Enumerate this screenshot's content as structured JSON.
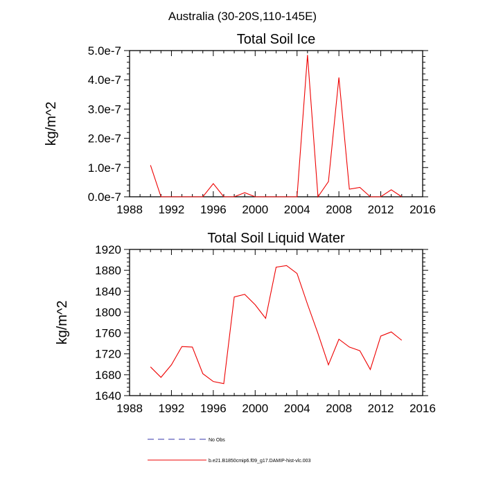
{
  "figure": {
    "suptitle": "Australia (30-20S,110-145E)"
  },
  "legend": {
    "placement": "bottom-center",
    "entries": [
      {
        "label": "No Obs",
        "color": "#3333aa",
        "style": "dashed"
      },
      {
        "label": "b.e21.B1850cmip6.f09_g17.DAMIP-hist-vlc.003",
        "color": "#ee0000",
        "style": "solid"
      }
    ]
  },
  "chart_data": [
    {
      "type": "line",
      "title": "Total Soil Ice",
      "ylabel": "kg/m^2",
      "xlabel": "",
      "xlim": [
        1988,
        2016
      ],
      "ylim": [
        0,
        5e-07
      ],
      "xticks": [
        1988,
        1992,
        1996,
        2000,
        2004,
        2008,
        2012,
        2016
      ],
      "xtick_labels": [
        "1988",
        "1992",
        "1996",
        "2000",
        "2004",
        "2008",
        "2012",
        "2016"
      ],
      "yticks": [
        0,
        1e-07,
        2e-07,
        3e-07,
        4e-07,
        5e-07
      ],
      "ytick_labels": [
        "0.0e-7",
        "1.0e-7",
        "2.0e-7",
        "3.0e-7",
        "4.0e-7",
        "5.0e-7"
      ],
      "grid": false,
      "series": [
        {
          "color": "#ee0000",
          "x": [
            1990,
            1991,
            1992,
            1993,
            1994,
            1995,
            1996,
            1997,
            1998,
            1999,
            2000,
            2001,
            2002,
            2003,
            2004,
            2005,
            2006,
            2007,
            2008,
            2009,
            2010,
            2011,
            2012,
            2013,
            2014
          ],
          "y": [
            1.08e-07,
            0,
            0,
            0,
            0,
            0,
            4.5e-08,
            0,
            0,
            1.4e-08,
            0,
            0,
            0,
            0,
            0,
            4.85e-07,
            0,
            5.2e-08,
            4.08e-07,
            2.6e-08,
            3.2e-08,
            0,
            0,
            2.4e-08,
            0
          ]
        }
      ]
    },
    {
      "type": "line",
      "title": "Total Soil Liquid Water",
      "ylabel": "kg/m^2",
      "xlabel": "",
      "xlim": [
        1988,
        2016
      ],
      "ylim": [
        1640,
        1920
      ],
      "xticks": [
        1988,
        1992,
        1996,
        2000,
        2004,
        2008,
        2012,
        2016
      ],
      "xtick_labels": [
        "1988",
        "1992",
        "1996",
        "2000",
        "2004",
        "2008",
        "2012",
        "2016"
      ],
      "yticks": [
        1640,
        1680,
        1720,
        1760,
        1800,
        1840,
        1880,
        1920
      ],
      "ytick_labels": [
        "1640",
        "1680",
        "1720",
        "1760",
        "1800",
        "1840",
        "1880",
        "1920"
      ],
      "grid": false,
      "series": [
        {
          "color": "#ee0000",
          "x": [
            1990,
            1991,
            1992,
            1993,
            1994,
            1995,
            1996,
            1997,
            1998,
            1999,
            2000,
            2001,
            2002,
            2003,
            2004,
            2005,
            2006,
            2007,
            2008,
            2009,
            2010,
            2011,
            2012,
            2013,
            2014
          ],
          "y": [
            1695,
            1675,
            1699,
            1734,
            1733,
            1682,
            1667,
            1663,
            1829,
            1834,
            1814,
            1788,
            1886,
            1889,
            1874,
            1815,
            1759,
            1699,
            1748,
            1733,
            1726,
            1690,
            1754,
            1762,
            1746
          ]
        }
      ]
    }
  ]
}
